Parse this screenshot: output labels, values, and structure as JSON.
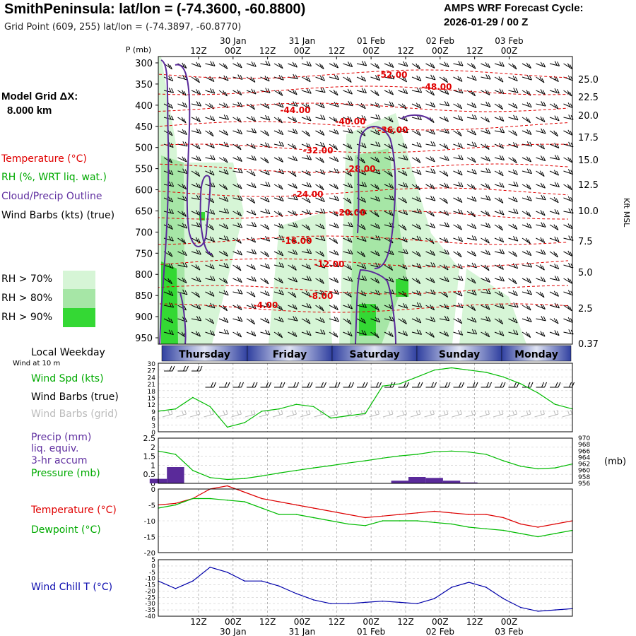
{
  "header": {
    "title": "SmithPeninsula:  lat/lon = (-74.3600, -60.8800)",
    "subtitle": "Grid Point (609, 255) lat/lon = (-74.3897, -60.8770)",
    "cycle_line1": "AMPS WRF Forecast Cycle:",
    "cycle_line2": "2026-01-29 / 00  Z"
  },
  "left_labels": {
    "grid_line1": "Model Grid ΔX:",
    "grid_line2": "8.000 km",
    "temperature": "Temperature (°C)",
    "rh": "RH (%, WRT liq. wat.)",
    "cloud": "Cloud/Precip Outline",
    "wind": "Wind Barbs (kts) (true)",
    "rh70": "RH > 70%",
    "rh80": "RH > 80%",
    "rh90": "RH > 90%",
    "weekday_title": "Local Weekday",
    "wind10m": "Wind at 10 m",
    "wspd": "Wind Spd (kts)",
    "wbarbs_true": "Wind Barbs (true)",
    "wbarbs_grid": "Wind Barbs (grid)",
    "precip1": "Precip (mm)",
    "precip2": "liq. equiv.",
    "precip3": "3-hr accum",
    "pressure": "Pressure (mb)",
    "temp": "Temperature (°C)",
    "dew": "Dewpoint (°C)",
    "wchill": "Wind Chill T (°C)"
  },
  "chart_data": [
    {
      "type": "heatmap",
      "panel": "cross-section",
      "y_axis_title": "P (mb)",
      "right_axis_title": "Kft MSL",
      "pressure_ticks": [
        "300",
        "350",
        "400",
        "450",
        "500",
        "550",
        "600",
        "650",
        "700",
        "750",
        "800",
        "850",
        "900",
        "950"
      ],
      "kft_ticks": [
        "25.0",
        "22.5",
        "20.0",
        "17.5",
        "15.0",
        "12.5",
        "10.0",
        "7.5",
        "5.0",
        "2.5",
        "0.37"
      ],
      "top_time_labels": [
        "12Z",
        "00Z",
        "12Z",
        "00Z",
        "12Z",
        "00Z",
        "12Z",
        "00Z",
        "12Z",
        "00Z"
      ],
      "top_date_labels": [
        "30 Jan",
        "31 Jan",
        "01 Feb",
        "02 Feb",
        "03 Feb"
      ],
      "temperature_contour_labels": [
        "-52.00",
        "-48.00",
        "-44.00",
        "-40.00",
        "-36.00",
        "-32.00",
        "-28.00",
        "-24.00",
        "-20.00",
        "-16.00",
        "-12.00",
        "-8.00",
        "-4.00"
      ]
    },
    {
      "type": "table",
      "panel": "weekday-bar",
      "days": [
        "Thursday",
        "Friday",
        "Saturday",
        "Sunday",
        "Monday"
      ]
    },
    {
      "type": "line",
      "panel": "wind-speed",
      "y_ticks": [
        "30",
        "27",
        "24",
        "21",
        "18",
        "15",
        "12",
        "9",
        "6",
        "3",
        "0"
      ],
      "ylim": [
        0,
        30
      ],
      "series": [
        {
          "name": "Wind Spd (kts)",
          "color": "#00bb00",
          "x": [
            0,
            6,
            12,
            18,
            24,
            30,
            36,
            42,
            48,
            54,
            60,
            66,
            72,
            78,
            84,
            90,
            96,
            102,
            108,
            114,
            120,
            126,
            132,
            138,
            144
          ],
          "values": [
            9,
            10,
            15,
            11,
            2,
            4,
            9,
            10,
            12,
            11,
            6,
            7,
            8,
            20,
            21,
            24,
            27,
            28,
            27,
            26,
            24,
            21,
            17,
            12,
            10
          ]
        }
      ]
    },
    {
      "type": "bar",
      "panel": "precip-pressure",
      "y_ticks_left": [
        "2.5",
        "2",
        "1.5",
        "1",
        "0.5",
        "0"
      ],
      "ylim_left": [
        0,
        2.5
      ],
      "y_ticks_right": [
        "970",
        "968",
        "966",
        "964",
        "962",
        "960",
        "958",
        "956"
      ],
      "ylim_right": [
        956,
        970
      ],
      "right_unit": "(mb)",
      "precip_x": [
        0,
        6,
        12,
        18,
        24,
        30,
        36,
        42,
        48,
        54,
        60,
        66,
        72,
        78,
        84,
        90,
        96,
        102,
        108,
        114,
        120,
        126,
        132,
        138,
        144
      ],
      "precip_values": [
        0.25,
        0.9,
        0.0,
        0.0,
        0.0,
        0.0,
        0.0,
        0.0,
        0.0,
        0.0,
        0.0,
        0.0,
        0.0,
        0.0,
        0.15,
        0.35,
        0.3,
        0.15,
        0.05,
        0.0,
        0.0,
        0.0,
        0.0,
        0.0,
        0.0
      ],
      "pressure_x": [
        0,
        6,
        12,
        18,
        24,
        30,
        36,
        42,
        48,
        54,
        60,
        66,
        72,
        78,
        84,
        90,
        96,
        102,
        108,
        114,
        120,
        126,
        132,
        138,
        144
      ],
      "pressure_values": [
        966,
        965,
        960,
        957.8,
        957.2,
        957.5,
        958.3,
        959.2,
        960,
        960.8,
        961.5,
        962.3,
        963,
        963.8,
        964.5,
        965,
        965.8,
        966,
        965.7,
        965,
        963,
        961.3,
        960.5,
        960.8,
        962
      ]
    },
    {
      "type": "line",
      "panel": "temperature-dewpoint",
      "y_ticks": [
        "0",
        "-5",
        "-10",
        "-15",
        "-20"
      ],
      "ylim": [
        -20,
        0
      ],
      "x": [
        0,
        6,
        12,
        18,
        24,
        30,
        36,
        42,
        48,
        54,
        60,
        66,
        72,
        78,
        84,
        90,
        96,
        102,
        108,
        114,
        120,
        126,
        132,
        138,
        144
      ],
      "series": [
        {
          "name": "Temperature (°C)",
          "color": "#dd0000",
          "values": [
            -5,
            -4.5,
            -3,
            0,
            1,
            -1,
            -3,
            -4,
            -5,
            -6,
            -7,
            -8,
            -9,
            -8.5,
            -8,
            -7.5,
            -7,
            -7.5,
            -8,
            -8,
            -9,
            -11,
            -12,
            -11,
            -10
          ]
        },
        {
          "name": "Dewpoint (°C)",
          "color": "#00bb00",
          "values": [
            -6,
            -5,
            -3,
            -3,
            -3.5,
            -4,
            -6,
            -8,
            -8,
            -9,
            -10,
            -11,
            -11.5,
            -10,
            -10,
            -10,
            -10.5,
            -11,
            -12,
            -12.5,
            -13,
            -14,
            -15,
            -14,
            -13
          ]
        }
      ]
    },
    {
      "type": "line",
      "panel": "wind-chill",
      "y_ticks": [
        "5",
        "0",
        "-5",
        "-10",
        "-15",
        "-20",
        "-25",
        "-30",
        "-35",
        "-40"
      ],
      "ylim": [
        -40,
        5
      ],
      "x": [
        0,
        6,
        12,
        18,
        24,
        30,
        36,
        42,
        48,
        54,
        60,
        66,
        72,
        78,
        84,
        90,
        96,
        102,
        108,
        114,
        120,
        126,
        132,
        138,
        144
      ],
      "series": [
        {
          "name": "Wind Chill T (°C)",
          "color": "#0000aa",
          "values": [
            -12,
            -18,
            -12,
            -1,
            -5,
            -12,
            -12,
            -16,
            -22,
            -27,
            -30,
            -30,
            -29,
            -28,
            -29,
            -30,
            -26,
            -17,
            -13,
            -17,
            -26,
            -33,
            -36,
            -35,
            -34
          ]
        }
      ]
    }
  ]
}
